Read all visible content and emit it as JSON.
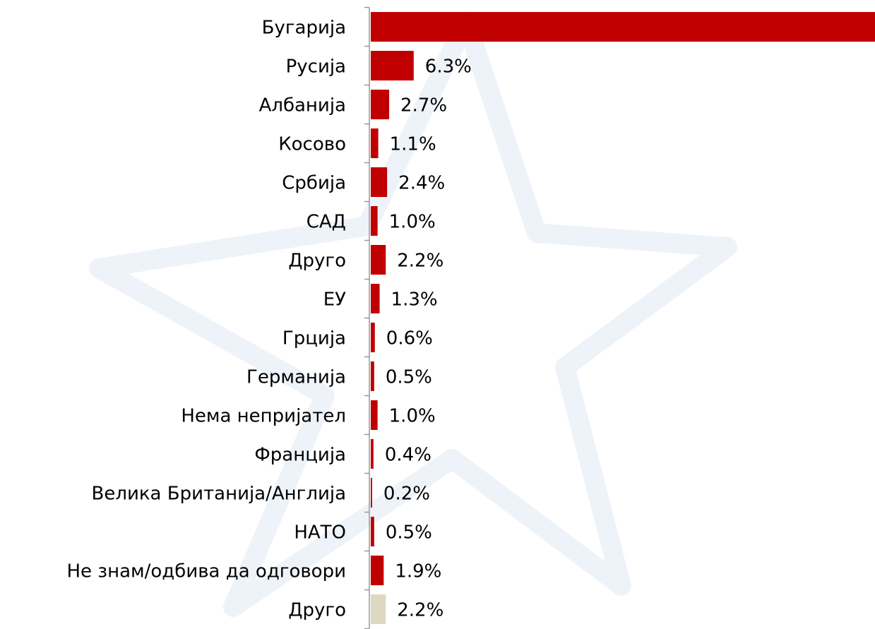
{
  "chart_data": {
    "type": "hbar",
    "categories": [
      "Бугарија",
      "Русија",
      "Албанија",
      "Косово",
      "Србија",
      "САД",
      "Друго",
      "ЕУ",
      "Грција",
      "Германија",
      "Нема непријател",
      "Франција",
      "Велика Британија/Англија",
      "НАТО",
      "Не знам/одбива да одговори",
      "Друго"
    ],
    "values": [
      74,
      6.3,
      2.7,
      1.1,
      2.4,
      1.0,
      2.2,
      1.3,
      0.6,
      0.5,
      1.0,
      0.4,
      0.2,
      0.5,
      1.9,
      2.2
    ],
    "value_labels": [
      null,
      "6.3%",
      "2.7%",
      "1.1%",
      "2.4%",
      "1.0%",
      "2.2%",
      "1.3%",
      "0.6%",
      "0.5%",
      "1.0%",
      "0.4%",
      "0.2%",
      "0.5%",
      "1.9%",
      "2.2%"
    ],
    "colors": [
      "#c00000",
      "#c00000",
      "#c00000",
      "#c00000",
      "#c00000",
      "#c00000",
      "#c00000",
      "#c00000",
      "#c00000",
      "#c00000",
      "#c00000",
      "#c00000",
      "#c00000",
      "#c00000",
      "#c00000",
      "#ddd8c0"
    ],
    "xlim": [
      0,
      74
    ]
  }
}
